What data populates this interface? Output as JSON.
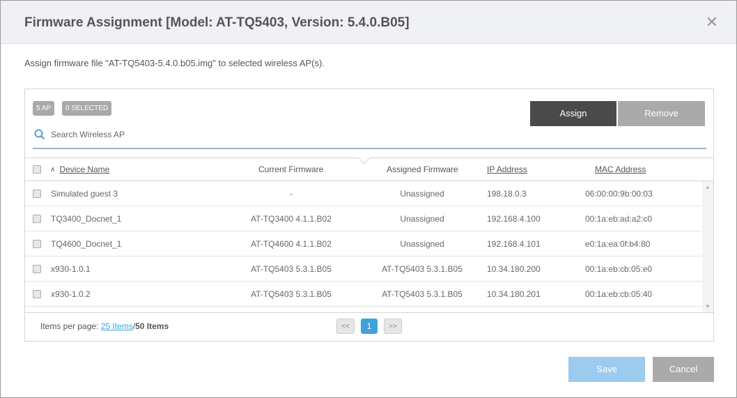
{
  "dialog": {
    "title": "Firmware Assignment [Model: AT-TQ5403, Version: 5.4.0.B05]",
    "close_icon": "close-icon",
    "description": "Assign firmware file \"AT-TQ5403-5.4.0.b05.img\" to selected wireless AP(s)."
  },
  "toolbar": {
    "ap_count": "5 AP",
    "selected_count": "0 SELECTED",
    "assign_label": "Assign",
    "remove_label": "Remove",
    "search_placeholder": "Search Wireless AP"
  },
  "table": {
    "columns": [
      "Device Name",
      "Current Firmware",
      "Assigned Firmware",
      "IP Address",
      "MAC Address"
    ],
    "sort": {
      "column": "Device Name",
      "direction": "ascending"
    },
    "rows": [
      {
        "name": "Simulated guest 3",
        "current": "-",
        "assigned": "Unassigned",
        "ip": "198.18.0.3",
        "mac": "06:00:00:9b:00:03"
      },
      {
        "name": "TQ3400_Docnet_1",
        "current": "AT-TQ3400 4.1.1.B02",
        "assigned": "Unassigned",
        "ip": "192.168.4.100",
        "mac": "00:1a:eb:ad:a2:c0"
      },
      {
        "name": "TQ4600_Docnet_1",
        "current": "AT-TQ4600 4.1.1.B02",
        "assigned": "Unassigned",
        "ip": "192.168.4.101",
        "mac": "e0:1a:ea:0f:b4:80"
      },
      {
        "name": "x930-1.0.1",
        "current": "AT-TQ5403 5.3.1.B05",
        "assigned": "AT-TQ5403 5.3.1.B05",
        "ip": "10.34.180.200",
        "mac": "00:1a:eb:cb:05:e0"
      },
      {
        "name": "x930-1.0.2",
        "current": "AT-TQ5403 5.3.1.B05",
        "assigned": "AT-TQ5403 5.3.1.B05",
        "ip": "10.34.180.201",
        "mac": "00:1a:eb:cb:05:40"
      }
    ]
  },
  "pagination": {
    "items_per_page_label": "Items per page:",
    "items_per_page": "25 Items",
    "separator": "/",
    "total": "50 Items",
    "prev": "<<",
    "current_page": "1",
    "next": ">>"
  },
  "actions": {
    "save_label": "Save",
    "cancel_label": "Cancel"
  },
  "colors": {
    "assign": "#4a4a4a",
    "remove": "#aaaaaa",
    "save": "#9ccbef",
    "cancel": "#aaaaaa",
    "page_active": "#3fa3d9",
    "link": "#3fa3d9"
  }
}
